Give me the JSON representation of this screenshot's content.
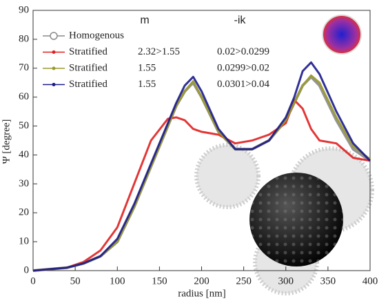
{
  "chart_data": {
    "type": "line",
    "xlabel": "radius [nm]",
    "ylabel": "Ψ [degree]",
    "column_headers": [
      "m",
      "-ik"
    ],
    "x": [
      0,
      20,
      40,
      60,
      80,
      100,
      120,
      140,
      160,
      170,
      180,
      190,
      200,
      220,
      240,
      260,
      280,
      300,
      310,
      320,
      330,
      340,
      360,
      380,
      400
    ],
    "xlim": [
      0,
      400
    ],
    "ylim": [
      0,
      90
    ],
    "xticks": [
      0,
      50,
      100,
      150,
      200,
      250,
      300,
      350,
      400
    ],
    "yticks": [
      0,
      10,
      20,
      30,
      40,
      50,
      60,
      70,
      80,
      90
    ],
    "grid": false,
    "series": [
      {
        "name": "Homogenous",
        "color": "#8a8a8a",
        "marker": "open-circle",
        "values": [
          0,
          0.5,
          1,
          2.5,
          5,
          10,
          22,
          36,
          50,
          57,
          62,
          65,
          60,
          48,
          42,
          42,
          45,
          52,
          58,
          64,
          67,
          64,
          52,
          42,
          38
        ]
      },
      {
        "name": "Stratified",
        "color": "#e02020",
        "marker": "dot",
        "m": "2.32>1.55",
        "ik": "0.02>0.0299",
        "values": [
          0,
          0.5,
          1,
          3,
          7,
          15,
          30,
          45,
          52.5,
          53,
          52,
          49,
          48,
          47,
          44,
          45,
          47,
          51,
          59,
          56,
          49,
          45,
          44,
          39,
          38
        ]
      },
      {
        "name": "Stratified",
        "color": "#9a9a2a",
        "marker": "dot",
        "m": "1.55",
        "ik": "0.0299>0.02",
        "values": [
          0,
          0.5,
          1,
          2.5,
          5,
          10,
          22,
          36,
          50,
          57,
          62,
          65.5,
          60,
          48,
          42,
          42,
          45,
          52,
          58,
          64,
          67.5,
          65,
          53,
          43,
          38.5
        ]
      },
      {
        "name": "Stratified",
        "color": "#1a1a8c",
        "marker": "dot",
        "m": "1.55",
        "ik": "0.0301>0.04",
        "values": [
          0,
          0.5,
          1,
          2.5,
          5,
          11,
          23,
          37,
          51,
          58,
          64,
          67,
          62,
          49,
          42,
          42,
          45,
          53,
          60,
          69,
          72,
          68,
          55,
          44,
          38
        ]
      }
    ]
  }
}
